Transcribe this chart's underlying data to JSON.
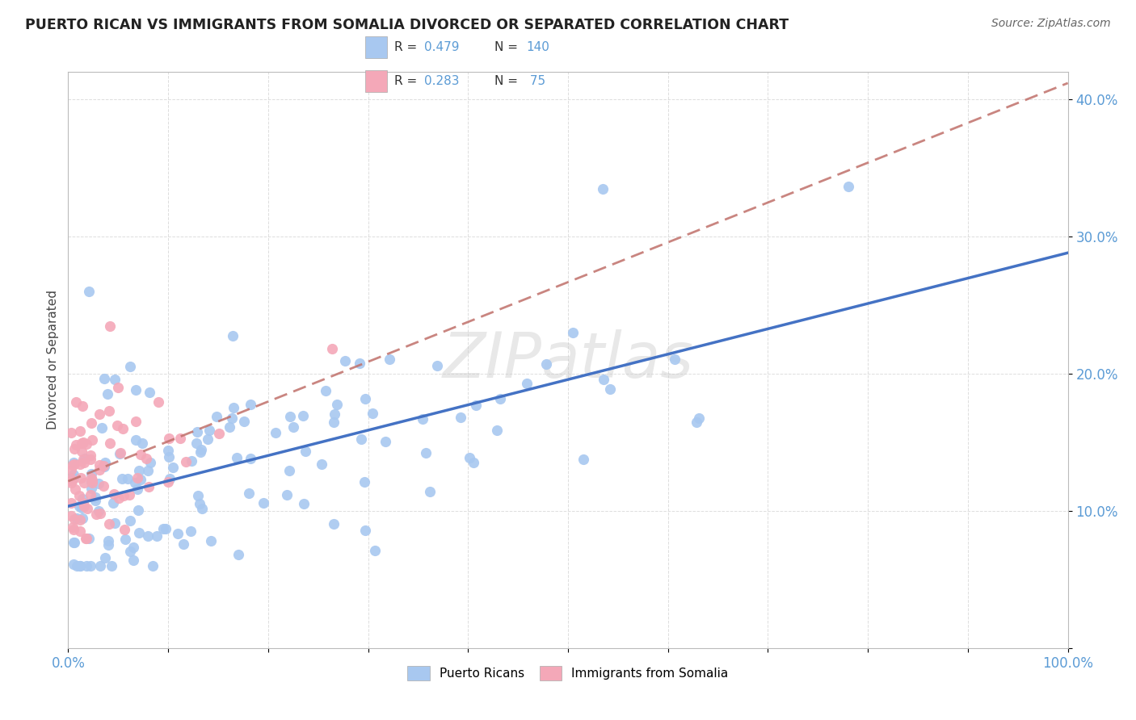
{
  "title": "PUERTO RICAN VS IMMIGRANTS FROM SOMALIA DIVORCED OR SEPARATED CORRELATION CHART",
  "source": "Source: ZipAtlas.com",
  "ylabel": "Divorced or Separated",
  "legend_label_blue": "Puerto Ricans",
  "legend_label_pink": "Immigrants from Somalia",
  "r_blue": 0.479,
  "n_blue": 140,
  "r_pink": 0.283,
  "n_pink": 75,
  "color_blue": "#a8c8f0",
  "color_pink": "#f4a8b8",
  "trendline_blue": "#4472c4",
  "trendline_pink": "#c0706a",
  "watermark": "ZIPatlas",
  "xlim": [
    0.0,
    1.0
  ],
  "ylim": [
    0.0,
    0.42
  ],
  "background_color": "#ffffff",
  "grid_color": "#dddddd",
  "tick_color": "#5b9bd5",
  "ytick_labels": [
    "",
    "10.0%",
    "20.0%",
    "30.0%",
    "40.0%"
  ],
  "xtick_labels": [
    "0.0%",
    "",
    "",
    "",
    "",
    "",
    "",
    "",
    "",
    "",
    "100.0%"
  ]
}
